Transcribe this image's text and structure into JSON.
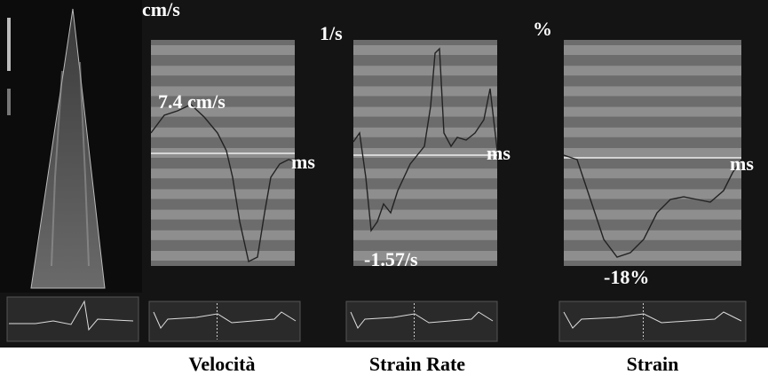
{
  "panels": [
    {
      "unit": "cm/s",
      "peak": "7.4 cm/s",
      "axis": "ms",
      "caption": "Velocità"
    },
    {
      "unit": "1/s",
      "peak": "-1.57/s",
      "axis": "ms",
      "caption": "Strain Rate"
    },
    {
      "unit": "%",
      "peak": "-18%",
      "axis": "ms",
      "caption": "Strain"
    }
  ]
}
